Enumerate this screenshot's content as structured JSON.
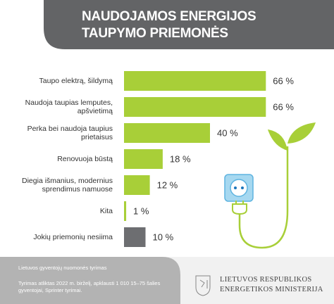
{
  "chart_data": {
    "type": "bar",
    "orientation": "horizontal",
    "title": "NAUDOJAMOS ENERGIJOS TAUPYMO PRIEMONĖS",
    "categories": [
      "Taupo elektrą, šildymą",
      "Naudoja taupias lemputes, apšvietimą",
      "Perka bei naudoja taupius prietaisus",
      "Renovuoja būstą",
      "Diegia išmanius, modernius sprendimus namuose",
      "Kita",
      "Jokių priemonių nesiima"
    ],
    "values": [
      66,
      66,
      40,
      18,
      12,
      1,
      10
    ],
    "value_labels": [
      "66 %",
      "66 %",
      "40 %",
      "18 %",
      "12 %",
      "1 %",
      "10 %"
    ],
    "colors": [
      "#a8cf38",
      "#a8cf38",
      "#a8cf38",
      "#a8cf38",
      "#a8cf38",
      "#a8cf38",
      "#6d6e71"
    ]
  },
  "footer": {
    "survey": "Lietuvos gyventojų nuomonės tyrimas",
    "note": "Tyrimas atliktas 2022 m. birželį, apklausti 1 010 15–75 šalies gyventojai, Sprinter tyrimai.",
    "ministry": [
      "LIETUVOS RESPUBLIKOS",
      "ENERGETIKOS MINISTERIJA"
    ]
  }
}
